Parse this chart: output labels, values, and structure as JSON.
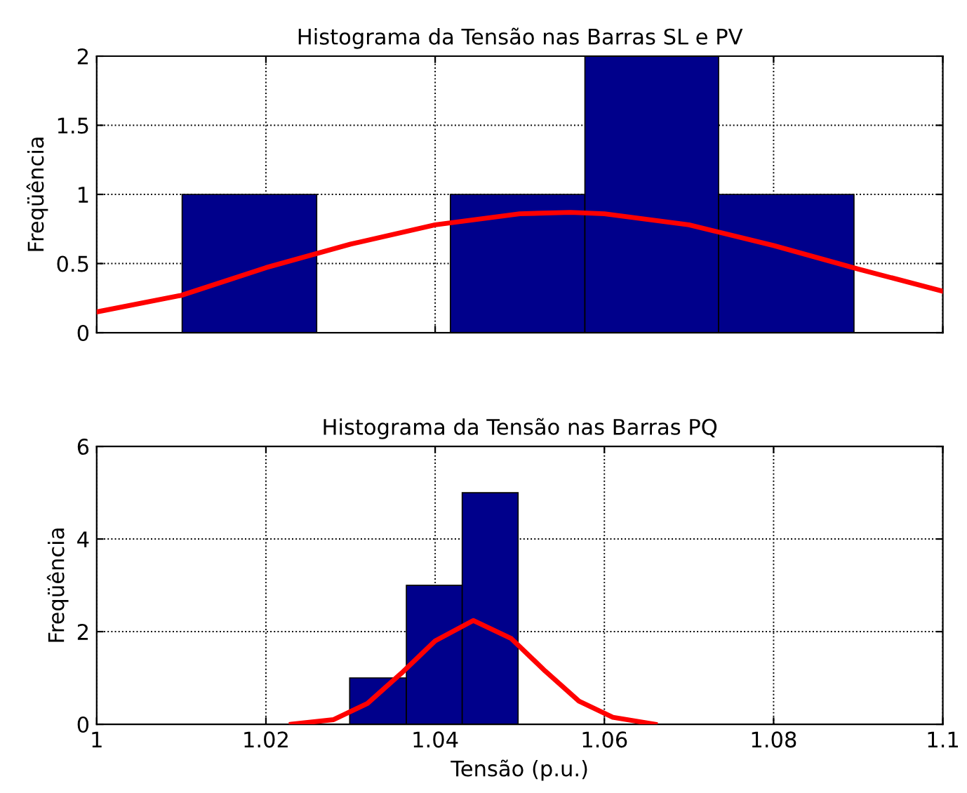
{
  "chart_data": [
    {
      "type": "histogram",
      "title": "Histograma da Tensão nas Barras SL e PV",
      "ylabel": "Freqüência",
      "bins": [
        1.0101,
        1.026,
        1.0418,
        1.0577,
        1.0735,
        1.0895
      ],
      "xlim": [
        1,
        1.1
      ],
      "xticks": [
        1,
        1.02,
        1.04,
        1.06,
        1.08,
        1.1
      ],
      "ylim": [
        0,
        2
      ],
      "yticks": [
        0,
        0.5,
        1,
        1.5,
        2
      ],
      "tick_labels": "y",
      "grid": true,
      "series": [
        {
          "color": "#00008b",
          "values": [
            1,
            0,
            1,
            2,
            1
          ]
        },
        {
          "type": "line",
          "color": "#ff0000",
          "x": [
            1,
            1.01,
            1.02,
            1.03,
            1.04,
            1.05,
            1.056,
            1.06,
            1.07,
            1.08,
            1.09,
            1.1
          ],
          "values": [
            0.15,
            0.27,
            0.47,
            0.64,
            0.78,
            0.86,
            0.87,
            0.86,
            0.78,
            0.63,
            0.46,
            0.3
          ]
        }
      ]
    },
    {
      "type": "histogram",
      "title": "Histograma da Tensão nas Barras PQ",
      "xlabel": "Tensão (p.u.)",
      "ylabel": "Freqüência",
      "bins": [
        1.0299,
        1.0366,
        1.0432,
        1.0498
      ],
      "xlim": [
        1,
        1.1
      ],
      "xticks": [
        1,
        1.02,
        1.04,
        1.06,
        1.08,
        1.1
      ],
      "ylim": [
        0,
        6
      ],
      "yticks": [
        0,
        2,
        4,
        6
      ],
      "grid": true,
      "series": [
        {
          "color": "#00008b",
          "values": [
            1,
            3,
            5
          ]
        },
        {
          "type": "line",
          "color": "#ff0000",
          "x": [
            1.023,
            1.028,
            1.032,
            1.036,
            1.04,
            1.0445,
            1.049,
            1.053,
            1.057,
            1.061,
            1.066
          ],
          "values": [
            0,
            0.1,
            0.45,
            1.1,
            1.8,
            2.24,
            1.85,
            1.15,
            0.5,
            0.15,
            0
          ]
        }
      ]
    }
  ]
}
